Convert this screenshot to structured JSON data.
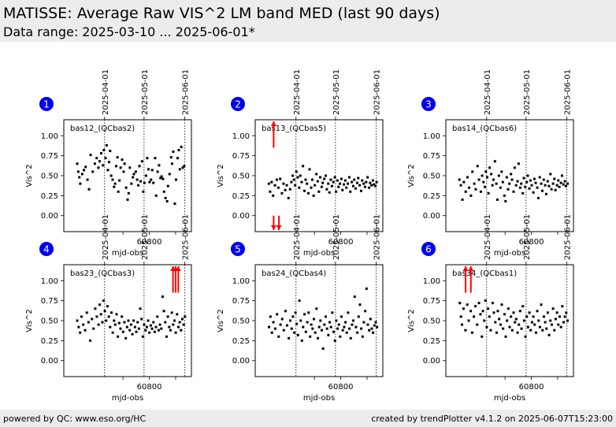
{
  "header": {
    "title": "MATISSE: Average Raw VIS^2 LM band MED (last 90 days)",
    "subtitle": "Data range: 2025-03-10 ... 2025-06-01*"
  },
  "footer": {
    "left": "powered by QC: www.eso.org/HC",
    "right": "created by trendPlotter v4.1.2 on 2025-06-07T15:23:00"
  },
  "colors": {
    "header_bg": "#ececec",
    "badge": "#0000ee",
    "point": "#000000",
    "outlier_arrow": "#ff0000"
  },
  "chart_data": [
    {
      "type": "scatter",
      "panel_number": "1",
      "label": "bas12_(QCbas2)",
      "xlabel": "mjd-obs",
      "ylabel": "Vis^2",
      "xlim": [
        60735,
        60832
      ],
      "ylim": [
        -0.2,
        1.2
      ],
      "x_ticks": [
        60800
      ],
      "y_ticks": [
        0.0,
        0.25,
        0.5,
        0.75,
        1.0
      ],
      "date_markers": [
        {
          "mjd": 60766,
          "label": "2025-04-01"
        },
        {
          "mjd": 60796,
          "label": "2025-05-01"
        },
        {
          "mjd": 60827,
          "label": "2025-06-01"
        }
      ],
      "x": [
        60745.2,
        60746,
        60746.8,
        60747.5,
        60749,
        60750.3,
        60751.6,
        60753,
        60754.2,
        60755.4,
        60757,
        60758.6,
        60760,
        60761.3,
        60762.2,
        60763.4,
        60764.8,
        60765.5,
        60766.7,
        60767.6,
        60768.5,
        60769.4,
        60770.2,
        60771,
        60772.1,
        60773.2,
        60774,
        60774.8,
        60775.8,
        60776.4,
        60777.3,
        60778.2,
        60779.3,
        60780.5,
        60781.2,
        60782.4,
        60783.5,
        60784.3,
        60785.2,
        60786.4,
        60787.5,
        60788.3,
        60789.7,
        60790.8,
        60791.6,
        60792.5,
        60793.4,
        60794.5,
        60795.4,
        60796.3,
        60797.5,
        60798.4,
        60799.3,
        60800.2,
        60801.3,
        60802.2,
        60803.1,
        60804.4,
        60805.2,
        60806.3,
        60807.4,
        60808.5,
        60809.3,
        60810.4,
        60811.2,
        60812.3,
        60813.5,
        60814.2,
        60815.4,
        60816.6,
        60817.3,
        60818.2,
        60819.4,
        60820.3,
        60821.5,
        60822.4,
        60823.2,
        60824.3,
        60825.4,
        60826.5
      ],
      "y": [
        0.65,
        0.55,
        0.48,
        0.4,
        0.52,
        0.57,
        0.61,
        0.45,
        0.33,
        0.76,
        0.55,
        0.65,
        0.72,
        0.6,
        0.68,
        0.78,
        0.63,
        0.82,
        0.72,
        0.88,
        0.57,
        0.67,
        0.81,
        0.5,
        0.45,
        0.36,
        0.4,
        0.62,
        0.73,
        0.3,
        0.44,
        0.6,
        0.7,
        0.55,
        0.65,
        0.35,
        0.2,
        0.28,
        0.6,
        0.4,
        0.48,
        0.52,
        0.55,
        0.45,
        0.38,
        0.62,
        0.43,
        0.68,
        0.3,
        0.41,
        0.5,
        0.72,
        0.58,
        0.42,
        0.45,
        0.57,
        0.41,
        0.72,
        0.25,
        0.55,
        0.63,
        0.47,
        0.49,
        0.46,
        0.3,
        0.22,
        0.18,
        0.37,
        0.52,
        0.73,
        0.65,
        0.8,
        0.15,
        0.45,
        0.72,
        0.82,
        0.58,
        0.86,
        0.6,
        0.62
      ],
      "up_outliers": [],
      "down_outliers": []
    },
    {
      "type": "scatter",
      "panel_number": "2",
      "label": "bas13_(QCbas5)",
      "xlabel": "mjd-obs",
      "ylabel": "Vis^2",
      "xlim": [
        60735,
        60832
      ],
      "ylim": [
        -0.2,
        1.2
      ],
      "x_ticks": [
        60800
      ],
      "y_ticks": [
        0.0,
        0.25,
        0.5,
        0.75,
        1.0
      ],
      "date_markers": [
        {
          "mjd": 60766,
          "label": "2025-04-01"
        },
        {
          "mjd": 60796,
          "label": "2025-05-01"
        },
        {
          "mjd": 60827,
          "label": "2025-06-01"
        }
      ],
      "x": [
        60745.4,
        60746.3,
        60747.5,
        60748.6,
        60750,
        60751.4,
        60752.6,
        60754,
        60755.3,
        60756.5,
        60757.8,
        60759,
        60760.3,
        60761.5,
        60762.5,
        60763.5,
        60764.5,
        60765.3,
        60766.3,
        60767.3,
        60768.4,
        60769.3,
        60770.3,
        60771.3,
        60772.4,
        60773.3,
        60774.3,
        60775.4,
        60776.3,
        60777.5,
        60778.4,
        60779.4,
        60780.3,
        60781.5,
        60782.5,
        60783.4,
        60784.4,
        60785.5,
        60786.3,
        60787.5,
        60788.6,
        60789.4,
        60790.5,
        60791.4,
        60792.4,
        60793.3,
        60794.4,
        60795.5,
        60796.4,
        60797.5,
        60798.3,
        60799.4,
        60800.5,
        60801.3,
        60802.4,
        60803.5,
        60804.3,
        60805.4,
        60806.5,
        60807.3,
        60808.4,
        60809.5,
        60810.3,
        60811.4,
        60812.5,
        60813.3,
        60814.4,
        60815.5,
        60816.3,
        60817.4,
        60818.5,
        60819.3,
        60820.4,
        60821.5,
        60822.3,
        60823.4,
        60824.5,
        60825.3,
        60826.4,
        60827.3
      ],
      "y": [
        0.4,
        0.3,
        0.42,
        0.25,
        0.38,
        0.45,
        0.35,
        0.46,
        0.28,
        0.4,
        0.32,
        0.38,
        0.22,
        0.33,
        0.42,
        0.5,
        0.45,
        0.38,
        0.55,
        0.48,
        0.35,
        0.5,
        0.42,
        0.62,
        0.31,
        0.45,
        0.4,
        0.28,
        0.58,
        0.35,
        0.45,
        0.25,
        0.38,
        0.52,
        0.43,
        0.3,
        0.48,
        0.36,
        0.41,
        0.46,
        0.5,
        0.33,
        0.4,
        0.29,
        0.45,
        0.37,
        0.42,
        0.48,
        0.3,
        0.44,
        0.36,
        0.4,
        0.46,
        0.32,
        0.39,
        0.44,
        0.35,
        0.4,
        0.48,
        0.3,
        0.42,
        0.37,
        0.45,
        0.34,
        0.41,
        0.47,
        0.38,
        0.31,
        0.44,
        0.4,
        0.36,
        0.42,
        0.48,
        0.35,
        0.41,
        0.38,
        0.44,
        0.39,
        0.37,
        0.42
      ],
      "up_outliers": [
        60749
      ],
      "down_outliers": [
        60749,
        60753
      ]
    },
    {
      "type": "scatter",
      "panel_number": "3",
      "label": "bas14_(QCbas6)",
      "xlabel": "mjd-obs",
      "ylabel": "Vis^2",
      "xlim": [
        60735,
        60832
      ],
      "ylim": [
        -0.2,
        1.2
      ],
      "x_ticks": [
        60800
      ],
      "y_ticks": [
        0.0,
        0.25,
        0.5,
        0.75,
        1.0
      ],
      "date_markers": [
        {
          "mjd": 60766,
          "label": "2025-04-01"
        },
        {
          "mjd": 60796,
          "label": "2025-05-01"
        },
        {
          "mjd": 60827,
          "label": "2025-06-01"
        }
      ],
      "x": [
        60745.3,
        60746.4,
        60747.6,
        60748.7,
        60750.1,
        60751.5,
        60752.7,
        60754.1,
        60755.2,
        60756.6,
        60757.7,
        60759.1,
        60760.2,
        60761.6,
        60762.6,
        60763.6,
        60764.6,
        60765.4,
        60766.4,
        60767.4,
        60768.3,
        60769.5,
        60770.4,
        60771.2,
        60772.3,
        60773.4,
        60774.2,
        60775.3,
        60776.5,
        60777.4,
        60778.3,
        60779.5,
        60780.4,
        60781.3,
        60782.3,
        60783.3,
        60784.5,
        60785.3,
        60786.5,
        60787.3,
        60788.4,
        60789.5,
        60790.3,
        60791.5,
        60792.3,
        60793.5,
        60794.3,
        60795.3,
        60796.5,
        60797.3,
        60798.5,
        60799.3,
        60800.3,
        60801.5,
        60802.3,
        60803.3,
        60804.5,
        60805.3,
        60806.4,
        60807.5,
        60808.3,
        60809.4,
        60810.5,
        60811.3,
        60812.4,
        60813.4,
        60814.5,
        60815.3,
        60816.5,
        60817.5,
        60818.3,
        60819.5,
        60820.5,
        60821.3,
        60822.5,
        60823.3,
        60824.4,
        60825.5,
        60826.3,
        60827.5
      ],
      "y": [
        0.45,
        0.38,
        0.2,
        0.42,
        0.3,
        0.48,
        0.35,
        0.25,
        0.55,
        0.4,
        0.33,
        0.62,
        0.45,
        0.3,
        0.5,
        0.42,
        0.36,
        0.55,
        0.48,
        0.28,
        0.6,
        0.52,
        0.38,
        0.45,
        0.68,
        0.4,
        0.2,
        0.5,
        0.35,
        0.55,
        0.42,
        0.25,
        0.18,
        0.48,
        0.33,
        0.4,
        0.52,
        0.45,
        0.3,
        0.6,
        0.38,
        0.43,
        0.65,
        0.35,
        0.4,
        0.28,
        0.47,
        0.36,
        0.42,
        0.5,
        0.34,
        0.44,
        0.38,
        0.29,
        0.46,
        0.41,
        0.35,
        0.22,
        0.48,
        0.4,
        0.31,
        0.45,
        0.38,
        0.27,
        0.43,
        0.37,
        0.52,
        0.33,
        0.4,
        0.46,
        0.32,
        0.38,
        0.44,
        0.36,
        0.41,
        0.5,
        0.39,
        0.43,
        0.37,
        0.4
      ],
      "up_outliers": [],
      "down_outliers": []
    },
    {
      "type": "scatter",
      "panel_number": "4",
      "label": "bas23_(QCbas3)",
      "xlabel": "mjd-obs",
      "ylabel": "Vis^2",
      "xlim": [
        60735,
        60832
      ],
      "ylim": [
        -0.2,
        1.2
      ],
      "x_ticks": [
        60800
      ],
      "y_ticks": [
        0.0,
        0.25,
        0.5,
        0.75,
        1.0
      ],
      "date_markers": [
        {
          "mjd": 60766,
          "label": "2025-04-01"
        },
        {
          "mjd": 60796,
          "label": "2025-05-01"
        },
        {
          "mjd": 60827,
          "label": "2025-06-01"
        }
      ],
      "x": [
        60745.2,
        60746.3,
        60747.4,
        60748.5,
        60749.8,
        60751.2,
        60752.5,
        60753.8,
        60755.1,
        60756.4,
        60757.6,
        60758.9,
        60760.1,
        60761.4,
        60762.3,
        60763.3,
        60764.3,
        60765.2,
        60766.2,
        60767.2,
        60768.2,
        60769.2,
        60770.2,
        60771.2,
        60772.2,
        60773.2,
        60774.1,
        60775.1,
        60776.1,
        60777.1,
        60778.1,
        60779.1,
        60780.1,
        60781.1,
        60782.1,
        60783.1,
        60784.1,
        60785.1,
        60786.1,
        60787.1,
        60788.1,
        60789.1,
        60790.1,
        60791.1,
        60792.1,
        60793.1,
        60794.1,
        60795.1,
        60796.1,
        60797.1,
        60798.1,
        60799.1,
        60800.1,
        60801.1,
        60802.1,
        60803.1,
        60804.1,
        60805.1,
        60806.1,
        60807.1,
        60808.1,
        60809.1,
        60810.1,
        60811.1,
        60812.1,
        60813.1,
        60814.1,
        60815.1,
        60816.1,
        60817.1,
        60818.1,
        60819.1,
        60820.1,
        60821.1,
        60822.1,
        60823.1,
        60824.1,
        60825.1,
        60826.1,
        60827.1
      ],
      "y": [
        0.5,
        0.42,
        0.35,
        0.55,
        0.45,
        0.38,
        0.6,
        0.48,
        0.25,
        0.52,
        0.4,
        0.65,
        0.55,
        0.45,
        0.7,
        0.58,
        0.48,
        0.75,
        0.62,
        0.5,
        0.68,
        0.55,
        0.42,
        0.6,
        0.35,
        0.5,
        0.45,
        0.58,
        0.3,
        0.47,
        0.4,
        0.55,
        0.36,
        0.48,
        0.28,
        0.42,
        0.5,
        0.38,
        0.45,
        0.33,
        0.5,
        0.42,
        0.36,
        0.48,
        0.4,
        0.65,
        0.52,
        0.3,
        0.45,
        0.38,
        0.42,
        0.5,
        0.35,
        0.44,
        0.4,
        0.48,
        0.36,
        0.42,
        0.55,
        0.38,
        0.45,
        0.4,
        0.8,
        0.62,
        0.48,
        0.3,
        0.55,
        0.42,
        0.38,
        0.6,
        0.45,
        0.5,
        0.35,
        0.58,
        0.42,
        0.48,
        0.38,
        0.52,
        0.45,
        0.55
      ],
      "up_outliers": [
        60818,
        60820,
        60822
      ],
      "down_outliers": []
    },
    {
      "type": "scatter",
      "panel_number": "5",
      "label": "bas24_(QCbas4)",
      "xlabel": "mjd-obs",
      "ylabel": "Vis^2",
      "xlim": [
        60735,
        60832
      ],
      "ylim": [
        -0.2,
        1.2
      ],
      "x_ticks": [
        60800
      ],
      "y_ticks": [
        0.0,
        0.25,
        0.5,
        0.75,
        1.0
      ],
      "date_markers": [
        {
          "mjd": 60766,
          "label": "2025-04-01"
        },
        {
          "mjd": 60796,
          "label": "2025-05-01"
        },
        {
          "mjd": 60827,
          "label": "2025-06-01"
        }
      ],
      "x": [
        60745.5,
        60746.6,
        60747.7,
        60748.8,
        60750.2,
        60751.6,
        60752.8,
        60754.2,
        60755.5,
        60756.7,
        60758,
        60759.2,
        60760.5,
        60761.7,
        60762.7,
        60763.7,
        60764.7,
        60765.6,
        60766.5,
        60767.5,
        60768.6,
        60769.6,
        60770.5,
        60771.4,
        60772.5,
        60773.5,
        60774.6,
        60775.6,
        60776.7,
        60777.6,
        60778.6,
        60779.6,
        60780.6,
        60781.6,
        60782.6,
        60783.6,
        60784.6,
        60785.6,
        60786.6,
        60787.6,
        60788.6,
        60789.6,
        60790.6,
        60791.6,
        60792.6,
        60793.6,
        60794.6,
        60795.6,
        60796.6,
        60797.6,
        60798.6,
        60799.6,
        60800.6,
        60801.6,
        60802.6,
        60803.6,
        60804.6,
        60805.6,
        60806.6,
        60807.6,
        60808.6,
        60809.6,
        60810.6,
        60811.6,
        60812.6,
        60813.6,
        60814.6,
        60815.6,
        60816.6,
        60817.6,
        60818.6,
        60819.6,
        60820.6,
        60821.6,
        60822.6,
        60823.6,
        60824.6,
        60825.6,
        60826.6,
        60827.6
      ],
      "y": [
        0.42,
        0.55,
        0.35,
        0.48,
        0.4,
        0.58,
        0.3,
        0.45,
        0.52,
        0.38,
        0.62,
        0.44,
        0.28,
        0.5,
        0.4,
        0.55,
        0.35,
        0.6,
        0.46,
        0.32,
        0.75,
        0.5,
        0.25,
        0.42,
        0.58,
        0.36,
        0.48,
        0.6,
        0.3,
        0.45,
        0.4,
        0.52,
        0.35,
        0.65,
        0.28,
        0.42,
        0.5,
        0.38,
        0.15,
        0.45,
        0.55,
        0.4,
        0.32,
        0.48,
        0.42,
        0.6,
        0.36,
        0.25,
        0.5,
        0.4,
        0.45,
        0.3,
        0.55,
        0.38,
        0.42,
        0.48,
        0.35,
        0.6,
        0.4,
        0.28,
        0.45,
        0.5,
        0.8,
        0.42,
        0.35,
        0.55,
        0.7,
        0.4,
        0.3,
        0.48,
        0.62,
        0.9,
        0.45,
        0.38,
        0.52,
        0.4,
        0.35,
        0.44,
        0.48,
        0.42
      ],
      "up_outliers": [],
      "down_outliers": []
    },
    {
      "type": "scatter",
      "panel_number": "6",
      "label": "bas34_(QCbas1)",
      "xlabel": "mjd-obs",
      "ylabel": "Vis^2",
      "xlim": [
        60735,
        60832
      ],
      "ylim": [
        -0.2,
        1.2
      ],
      "x_ticks": [
        60800
      ],
      "y_ticks": [
        0.0,
        0.25,
        0.5,
        0.75,
        1.0
      ],
      "date_markers": [
        {
          "mjd": 60766,
          "label": "2025-04-01"
        },
        {
          "mjd": 60796,
          "label": "2025-05-01"
        },
        {
          "mjd": 60827,
          "label": "2025-06-01"
        }
      ],
      "x": [
        60745.6,
        60746.5,
        60747.3,
        60748.4,
        60749.9,
        60751.3,
        60752.4,
        60753.9,
        60755,
        60756.3,
        60757.5,
        60758.8,
        60760.2,
        60761.3,
        60762.4,
        60763.2,
        60764.2,
        60765.1,
        60766.1,
        60767.1,
        60768.1,
        60769.1,
        60770.6,
        60771.5,
        60772.6,
        60773.6,
        60774.5,
        60775.5,
        60776.6,
        60777.5,
        60778.5,
        60779.6,
        60780.5,
        60781.5,
        60782.5,
        60783.5,
        60784.5,
        60785.5,
        60786.5,
        60787.5,
        60788.5,
        60789.5,
        60790.5,
        60791.5,
        60792.5,
        60793.5,
        60794.5,
        60795.5,
        60796.5,
        60797.5,
        60798.5,
        60799.5,
        60800.5,
        60801.5,
        60802.5,
        60803.5,
        60804.5,
        60805.5,
        60806.5,
        60807.5,
        60808.5,
        60809.5,
        60810.5,
        60811.5,
        60812.5,
        60813.5,
        60814.5,
        60815.5,
        60816.5,
        60817.5,
        60818.5,
        60819.5,
        60820.5,
        60821.5,
        60822.5,
        60823.5,
        60824.5,
        60825.5,
        60826.5,
        60827.5
      ],
      "y": [
        0.72,
        0.55,
        0.45,
        0.65,
        0.38,
        0.7,
        0.5,
        0.62,
        0.35,
        0.55,
        0.68,
        0.45,
        0.72,
        0.58,
        0.3,
        0.62,
        0.5,
        0.75,
        0.42,
        0.65,
        0.55,
        0.38,
        0.72,
        0.6,
        0.48,
        0.35,
        0.62,
        0.52,
        0.45,
        0.7,
        0.4,
        0.58,
        0.3,
        0.5,
        0.65,
        0.42,
        0.55,
        0.38,
        0.6,
        0.48,
        0.52,
        0.35,
        0.45,
        0.62,
        0.4,
        0.68,
        0.5,
        0.3,
        0.55,
        0.42,
        0.6,
        0.38,
        0.48,
        0.55,
        0.45,
        0.35,
        0.62,
        0.5,
        0.42,
        0.7,
        0.38,
        0.55,
        0.48,
        0.4,
        0.6,
        0.32,
        0.5,
        0.45,
        0.65,
        0.38,
        0.52,
        0.6,
        0.45,
        0.55,
        0.42,
        0.68,
        0.48,
        0.55,
        0.6,
        0.5
      ],
      "up_outliers": [
        60750,
        60754
      ],
      "down_outliers": []
    }
  ]
}
